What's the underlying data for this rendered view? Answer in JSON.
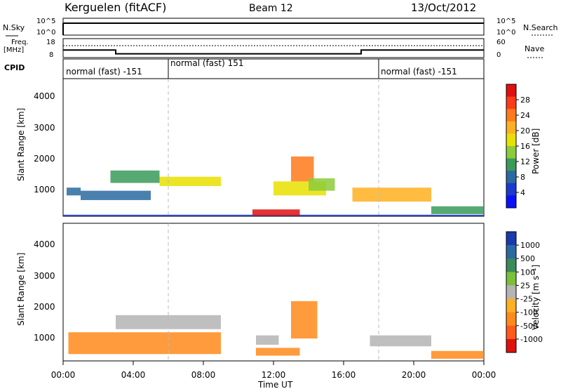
{
  "header": {
    "station": "Kerguelen (fitACF)",
    "beam": "Beam 12",
    "date": "13/Oct/2012"
  },
  "noise_panel": {
    "left_label": "N.Sky",
    "right_label": "N.Search",
    "left_ticks": [
      "10^5",
      "10^0"
    ],
    "right_ticks": [
      "10^5",
      "10^0"
    ]
  },
  "freq_panel": {
    "left_label_1": "Freq.",
    "left_label_2": "[MHz]",
    "right_label": "Nave",
    "left_ticks": [
      "18",
      "8"
    ],
    "right_ticks": [
      "60",
      "0"
    ]
  },
  "cpid": {
    "label": "CPID",
    "segments": [
      {
        "text": "normal (fast) -151",
        "start_hour": 0
      },
      {
        "text": "normal (fast) 151",
        "start_hour": 6
      },
      {
        "text": "normal (fast) -151",
        "start_hour": 18
      }
    ]
  },
  "power_colorbar": {
    "title": "Power [dB]",
    "ticks": [
      "28",
      "24",
      "20",
      "16",
      "12",
      "8",
      "4"
    ],
    "colors": [
      "#e01010",
      "#ff3a1a",
      "#ff7a1a",
      "#ffb020",
      "#e8e000",
      "#8ccc3a",
      "#3a9a5a",
      "#2a6aa0",
      "#1a3ad0",
      "#0a10ff"
    ]
  },
  "velocity_colorbar": {
    "title": "Velocity [m s⁻¹]",
    "ticks": [
      "1000",
      "500",
      "100",
      "25",
      "-25",
      "-100",
      "-500",
      "-1000"
    ],
    "colors": [
      "#1a3ab0",
      "#2a6aa0",
      "#3a8a5a",
      "#7ac03a",
      "#b4b4b4",
      "#ffb020",
      "#ff8a1a",
      "#ff5a1a",
      "#e01010"
    ]
  },
  "xaxis": {
    "title": "Time UT",
    "ticks": [
      "00:00",
      "04:00",
      "08:00",
      "12:00",
      "16:00",
      "20:00",
      "00:00"
    ]
  },
  "yaxis": {
    "title": "Slant Range [km]",
    "ticks": [
      "1000",
      "2000",
      "3000",
      "4000"
    ]
  },
  "chart_data": {
    "type": "heatmap",
    "title": "Kerguelen (fitACF)   Beam 12   13/Oct/2012",
    "xlabel": "Time UT",
    "ylabel": "Slant Range [km]",
    "xlim_hours": [
      0,
      24
    ],
    "ylim_km": [
      180,
      4600
    ],
    "frequency_schedule_mhz": [
      {
        "from_hour": 0,
        "to_hour": 3,
        "value": 12
      },
      {
        "from_hour": 3,
        "to_hour": 17,
        "value": 10
      },
      {
        "from_hour": 17,
        "to_hour": 24,
        "value": 12
      }
    ],
    "power_regions": [
      {
        "t0": 0.0,
        "t1": 24.0,
        "r0": 190,
        "r1": 230,
        "level": 1
      },
      {
        "t0": 0.2,
        "t1": 1.0,
        "r0": 850,
        "r1": 1100,
        "level": 2
      },
      {
        "t0": 2.7,
        "t1": 5.5,
        "r0": 1250,
        "r1": 1650,
        "level": 3
      },
      {
        "t0": 5.5,
        "t1": 9.0,
        "r0": 1150,
        "r1": 1450,
        "level": 5
      },
      {
        "t0": 1.0,
        "t1": 5.0,
        "r0": 700,
        "r1": 1000,
        "level": 2
      },
      {
        "t0": 10.8,
        "t1": 13.5,
        "r0": 200,
        "r1": 400,
        "level": 9
      },
      {
        "t0": 12.0,
        "t1": 15.0,
        "r0": 850,
        "r1": 1300,
        "level": 5
      },
      {
        "t0": 13.0,
        "t1": 14.3,
        "r0": 1300,
        "r1": 2100,
        "level": 7
      },
      {
        "t0": 14.0,
        "t1": 15.5,
        "r0": 1000,
        "r1": 1400,
        "level": 4
      },
      {
        "t0": 16.5,
        "t1": 21.0,
        "r0": 650,
        "r1": 1100,
        "level": 6
      },
      {
        "t0": 21.0,
        "t1": 24.0,
        "r0": 250,
        "r1": 500,
        "level": 3
      }
    ],
    "velocity_regions": [
      {
        "t0": 3.0,
        "t1": 9.0,
        "r0": 1200,
        "r1": 1650,
        "class": "-25..25"
      },
      {
        "t0": 0.3,
        "t1": 9.0,
        "r0": 400,
        "r1": 1100,
        "class": "-100..-500"
      },
      {
        "t0": 11.0,
        "t1": 12.3,
        "r0": 700,
        "r1": 1000,
        "class": "-25..25"
      },
      {
        "t0": 11.0,
        "t1": 13.5,
        "r0": 350,
        "r1": 600,
        "class": "-100..-500"
      },
      {
        "t0": 13.0,
        "t1": 14.5,
        "r0": 900,
        "r1": 2100,
        "class": "-100..-500"
      },
      {
        "t0": 17.5,
        "t1": 21.0,
        "r0": 650,
        "r1": 1000,
        "class": "-25..25"
      },
      {
        "t0": 21.0,
        "t1": 24.0,
        "r0": 250,
        "r1": 500,
        "class": "-100..-500"
      }
    ]
  }
}
